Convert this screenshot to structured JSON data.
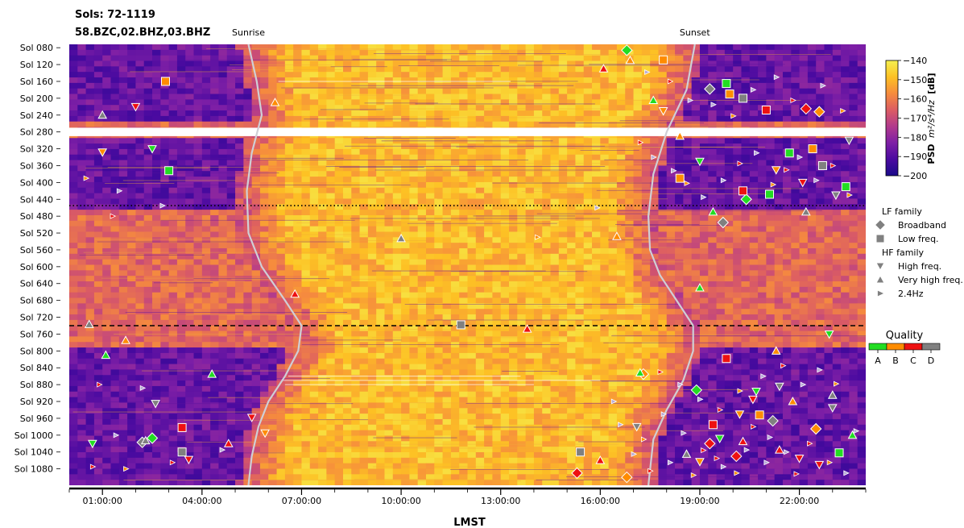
{
  "header": {
    "sols_label": "Sols: 72-1119",
    "channels_label": "58.BZC,02.BHZ,03.BHZ"
  },
  "chart_data": {
    "type": "heatmap",
    "title": "Sols: 72-1119",
    "subtitle": "58.BZC,02.BHZ,03.BHZ",
    "xlabel": "LMST",
    "ylabel": "",
    "x_ticks": [
      "01:00:00",
      "04:00:00",
      "07:00:00",
      "10:00:00",
      "13:00:00",
      "16:00:00",
      "19:00:00",
      "22:00:00"
    ],
    "x_tick_hours": [
      1,
      4,
      7,
      10,
      13,
      16,
      19,
      22
    ],
    "xlim": [
      0,
      24
    ],
    "y_ticks": [
      "Sol 080",
      "Sol 120",
      "Sol 160",
      "Sol 200",
      "Sol 240",
      "Sol 280",
      "Sol 320",
      "Sol 360",
      "Sol 400",
      "Sol 440",
      "Sol 480",
      "Sol 520",
      "Sol 560",
      "Sol 600",
      "Sol 640",
      "Sol 680",
      "Sol 720",
      "Sol 760",
      "Sol 800",
      "Sol 840",
      "Sol 880",
      "Sol 920",
      "Sol 960",
      "Sol 1000",
      "Sol 1040",
      "Sol 1080"
    ],
    "y_tick_sols": [
      80,
      120,
      160,
      200,
      240,
      280,
      320,
      360,
      400,
      440,
      480,
      520,
      560,
      600,
      640,
      680,
      720,
      760,
      800,
      840,
      880,
      920,
      960,
      1000,
      1040,
      1080
    ],
    "ylim": [
      72,
      1119
    ],
    "y_inverted": true,
    "data_gap_sols": [
      270,
      290
    ],
    "reference_lines": [
      {
        "style": "dotted",
        "sol": 455
      },
      {
        "style": "dashed",
        "sol": 740
      }
    ],
    "curves": [
      {
        "label": "Sunrise",
        "color": "#cfcfd6",
        "points": [
          [
            5.4,
            72
          ],
          [
            5.65,
            160
          ],
          [
            5.8,
            240
          ],
          [
            5.5,
            330
          ],
          [
            5.35,
            420
          ],
          [
            5.4,
            520
          ],
          [
            5.8,
            600
          ],
          [
            6.5,
            680
          ],
          [
            7.0,
            740
          ],
          [
            6.9,
            800
          ],
          [
            6.5,
            860
          ],
          [
            6.0,
            920
          ],
          [
            5.7,
            980
          ],
          [
            5.5,
            1050
          ],
          [
            5.4,
            1119
          ]
        ]
      },
      {
        "label": "Sunset",
        "color": "#cfcfd6",
        "points": [
          [
            18.85,
            72
          ],
          [
            18.6,
            180
          ],
          [
            18.0,
            280
          ],
          [
            17.6,
            380
          ],
          [
            17.45,
            480
          ],
          [
            17.5,
            560
          ],
          [
            17.8,
            620
          ],
          [
            18.3,
            680
          ],
          [
            18.8,
            740
          ],
          [
            18.8,
            800
          ],
          [
            18.5,
            870
          ],
          [
            18.0,
            940
          ],
          [
            17.6,
            1010
          ],
          [
            17.45,
            1119
          ]
        ]
      }
    ],
    "colorbar": {
      "label": "PSD m²/s⁴/Hz [dB]",
      "label_plain": "m",
      "label_bold": "PSD",
      "label_units": "[dB]",
      "ticks": [
        -140,
        -150,
        -160,
        -170,
        -180,
        -190,
        -200
      ],
      "range": [
        -200,
        -140
      ],
      "colors": [
        "#1a0a8a",
        "#4a0aa0",
        "#7e1fa6",
        "#b23a8c",
        "#dc5d63",
        "#f68c3d",
        "#fdc124",
        "#f5f04f"
      ]
    },
    "series": [
      {
        "name": "Broadband",
        "family": "LF family",
        "marker": "diamond",
        "points": [
          [
            16.8,
            86
          ],
          [
            19.3,
            178
          ],
          [
            22.2,
            225
          ],
          [
            22.6,
            232
          ],
          [
            20.4,
            440
          ],
          [
            19.7,
            495
          ],
          [
            15.3,
            1090
          ],
          [
            16.8,
            1100
          ],
          [
            2.5,
            1007
          ],
          [
            2.2,
            1017
          ],
          [
            20.1,
            1050
          ],
          [
            17.3,
            855
          ],
          [
            18.9,
            893
          ],
          [
            21.2,
            966
          ],
          [
            19.3,
            1020
          ],
          [
            22.5,
            985
          ]
        ]
      },
      {
        "name": "Low freq.",
        "family": "LF family",
        "marker": "square",
        "points": [
          [
            17.9,
            109
          ],
          [
            19.8,
            165
          ],
          [
            20.3,
            200
          ],
          [
            21.0,
            228
          ],
          [
            19.9,
            190
          ],
          [
            21.7,
            330
          ],
          [
            22.7,
            360
          ],
          [
            20.3,
            420
          ],
          [
            18.4,
            390
          ],
          [
            21.1,
            428
          ],
          [
            11.8,
            738
          ],
          [
            19.8,
            818
          ],
          [
            2.9,
            160
          ],
          [
            3.0,
            372
          ],
          [
            3.4,
            1040
          ],
          [
            3.4,
            982
          ],
          [
            22.4,
            320
          ],
          [
            23.4,
            410
          ],
          [
            15.4,
            1040
          ],
          [
            19.4,
            975
          ],
          [
            20.8,
            952
          ],
          [
            23.2,
            1042
          ]
        ]
      },
      {
        "name": "High freq.",
        "family": "HF family",
        "marker": "triangle_down",
        "points": [
          [
            2.0,
            220
          ],
          [
            1.0,
            328
          ],
          [
            2.5,
            320
          ],
          [
            23.5,
            300
          ],
          [
            22.1,
            400
          ],
          [
            21.3,
            370
          ],
          [
            19.0,
            350
          ],
          [
            2.6,
            925
          ],
          [
            3.6,
            1058
          ],
          [
            17.9,
            230
          ],
          [
            22.9,
            760
          ],
          [
            23.1,
            430
          ],
          [
            5.5,
            958
          ],
          [
            5.9,
            995
          ],
          [
            0.7,
            1020
          ],
          [
            21.4,
            884
          ],
          [
            20.6,
            915
          ],
          [
            20.2,
            950
          ],
          [
            19.6,
            1008
          ],
          [
            17.1,
            980
          ],
          [
            22.0,
            1055
          ],
          [
            19.0,
            1063
          ],
          [
            20.7,
            896
          ],
          [
            23.0,
            935
          ],
          [
            22.6,
            1070
          ]
        ]
      },
      {
        "name": "Very high freq.",
        "family": "HF family",
        "marker": "triangle_up",
        "points": [
          [
            1.0,
            240
          ],
          [
            16.1,
            130
          ],
          [
            16.9,
            110
          ],
          [
            17.6,
            205
          ],
          [
            10.0,
            533
          ],
          [
            13.8,
            748
          ],
          [
            16.5,
            528
          ],
          [
            17.2,
            852
          ],
          [
            18.6,
            1045
          ],
          [
            20.3,
            1015
          ],
          [
            21.3,
            800
          ],
          [
            23.6,
            1000
          ],
          [
            0.6,
            737
          ],
          [
            6.8,
            665
          ],
          [
            6.2,
            210
          ],
          [
            4.3,
            855
          ],
          [
            2.3,
            1013
          ],
          [
            4.8,
            1020
          ],
          [
            1.7,
            775
          ],
          [
            1.1,
            810
          ],
          [
            23.0,
            905
          ],
          [
            16.0,
            1060
          ],
          [
            18.4,
            290
          ],
          [
            19.4,
            470
          ],
          [
            22.2,
            470
          ],
          [
            21.4,
            1035
          ],
          [
            21.8,
            920
          ],
          [
            19.0,
            650
          ]
        ]
      },
      {
        "name": "2.4Hz",
        "family": "HF family",
        "marker": "triangle_right",
        "points": [
          [
            0.5,
            390
          ],
          [
            1.5,
            420
          ],
          [
            2.8,
            455
          ],
          [
            1.3,
            480
          ],
          [
            15.9,
            460
          ],
          [
            14.1,
            530
          ],
          [
            0.9,
            880
          ],
          [
            2.2,
            888
          ],
          [
            1.4,
            1000
          ],
          [
            0.7,
            1075
          ],
          [
            1.7,
            1080
          ],
          [
            4.6,
            1035
          ],
          [
            3.1,
            1065
          ],
          [
            16.4,
            920
          ],
          [
            16.6,
            975
          ],
          [
            17.3,
            1010
          ],
          [
            17.9,
            950
          ],
          [
            18.5,
            995
          ],
          [
            19.1,
            1036
          ],
          [
            19.7,
            1075
          ],
          [
            20.1,
            1090
          ],
          [
            20.6,
            980
          ],
          [
            21.1,
            1005
          ],
          [
            21.6,
            1040
          ],
          [
            22.3,
            1020
          ],
          [
            22.9,
            1065
          ],
          [
            23.4,
            1090
          ],
          [
            17.2,
            305
          ],
          [
            17.6,
            340
          ],
          [
            18.2,
            372
          ],
          [
            18.6,
            402
          ],
          [
            19.1,
            435
          ],
          [
            19.7,
            395
          ],
          [
            20.2,
            355
          ],
          [
            20.7,
            330
          ],
          [
            21.2,
            405
          ],
          [
            21.6,
            370
          ],
          [
            22.0,
            340
          ],
          [
            22.5,
            395
          ],
          [
            23.0,
            360
          ],
          [
            23.5,
            430
          ],
          [
            17.4,
            138
          ],
          [
            18.1,
            160
          ],
          [
            18.7,
            205
          ],
          [
            19.4,
            215
          ],
          [
            20.0,
            242
          ],
          [
            20.6,
            180
          ],
          [
            21.3,
            150
          ],
          [
            21.8,
            205
          ],
          [
            22.7,
            170
          ],
          [
            23.3,
            230
          ],
          [
            17.8,
            850
          ],
          [
            18.4,
            880
          ],
          [
            19.0,
            915
          ],
          [
            19.6,
            940
          ],
          [
            20.2,
            895
          ],
          [
            20.9,
            860
          ],
          [
            21.5,
            835
          ],
          [
            22.1,
            880
          ],
          [
            22.6,
            845
          ],
          [
            23.1,
            878
          ],
          [
            23.7,
            990
          ],
          [
            17.0,
            1045
          ],
          [
            17.5,
            1085
          ],
          [
            18.1,
            1065
          ],
          [
            18.8,
            1095
          ],
          [
            19.5,
            1055
          ],
          [
            20.4,
            1035
          ],
          [
            21.0,
            1065
          ],
          [
            21.9,
            1092
          ]
        ]
      }
    ],
    "legend": {
      "groups": [
        {
          "title": "LF family",
          "items": [
            {
              "label": "Broadband",
              "marker": "diamond"
            },
            {
              "label": "Low freq.",
              "marker": "square"
            }
          ]
        },
        {
          "title": "HF family",
          "items": [
            {
              "label": "High freq.",
              "marker": "triangle_down"
            },
            {
              "label": "Very high freq.",
              "marker": "triangle_up"
            },
            {
              "label": "2.4Hz",
              "marker": "triangle_right"
            }
          ]
        }
      ],
      "placement": "right"
    },
    "quality": {
      "title": "Quality",
      "classes": [
        {
          "label": "A",
          "color": "#22dd22"
        },
        {
          "label": "B",
          "color": "#ff8c00"
        },
        {
          "label": "C",
          "color": "#ee1111"
        },
        {
          "label": "D",
          "color": "#808080"
        }
      ]
    },
    "grid": false
  }
}
